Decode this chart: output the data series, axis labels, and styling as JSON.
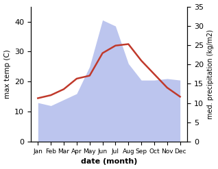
{
  "months": [
    "Jan",
    "Feb",
    "Mar",
    "Apr",
    "May",
    "Jun",
    "Jul",
    "Aug",
    "Sep",
    "Oct",
    "Nov",
    "Dec"
  ],
  "month_indices": [
    0,
    1,
    2,
    3,
    4,
    5,
    6,
    7,
    8,
    9,
    10,
    11
  ],
  "max_temp": [
    14.5,
    15.5,
    17.5,
    21.0,
    22.0,
    29.5,
    32.0,
    32.5,
    27.0,
    22.5,
    18.0,
    15.0
  ],
  "precipitation_left_scale": [
    13.0,
    12.0,
    14.0,
    16.0,
    25.0,
    40.5,
    38.5,
    26.0,
    20.5,
    20.5,
    21.0,
    20.5
  ],
  "temp_color": "#c0392b",
  "precip_fill_color": "#bcc5ee",
  "ylabel_left": "max temp (C)",
  "ylabel_right": "med. precipitation (kg/m2)",
  "xlabel": "date (month)",
  "ylim_left": [
    0,
    45
  ],
  "ylim_right": [
    0,
    35
  ],
  "yticks_left": [
    0,
    10,
    20,
    30,
    40
  ],
  "yticks_right": [
    0,
    5,
    10,
    15,
    20,
    25,
    30,
    35
  ],
  "right_tick_labels": [
    "0",
    "5",
    "10",
    "15",
    "20",
    "25",
    "30",
    "35"
  ],
  "background_color": "#ffffff"
}
